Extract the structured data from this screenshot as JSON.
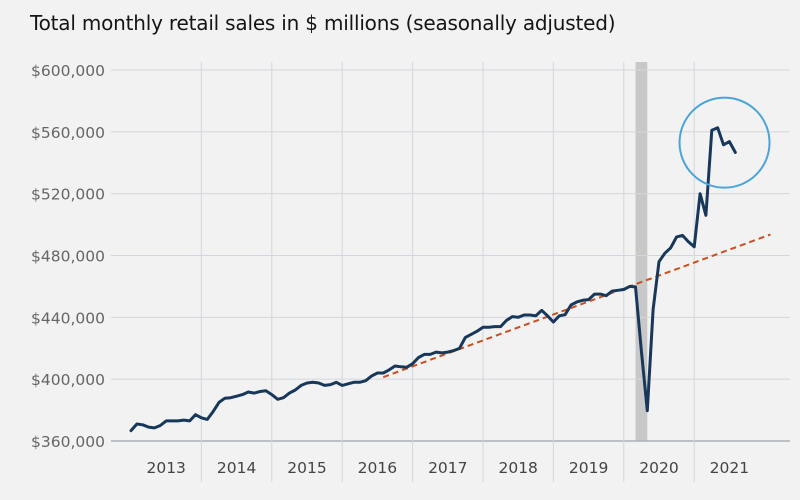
{
  "chart_data": {
    "type": "line",
    "title": "Total monthly retail sales in $ millions (seasonally adjusted)",
    "xlabel": "",
    "ylabel": "",
    "ylim": [
      360000,
      600000
    ],
    "yticks": [
      360000,
      400000,
      440000,
      480000,
      520000,
      560000,
      600000
    ],
    "ytick_labels": [
      "$360,000",
      "$400,000",
      "$440,000",
      "$480,000",
      "$520,000",
      "$560,000",
      "$600,000"
    ],
    "xticks": [
      "2013",
      "2014",
      "2015",
      "2016",
      "2017",
      "2018",
      "2019",
      "2020",
      "2021"
    ],
    "grid": true,
    "colors": {
      "series": "#17385a",
      "trend": "#c9501f",
      "recession": "#c8c8c8",
      "highlight": "#4aa3d9",
      "grid": "#d3d6dc",
      "axis": "#aab0ba"
    },
    "series": [
      {
        "start": "2012-12",
        "frequency": "monthly",
        "values": [
          366700,
          371000,
          370500,
          369000,
          368500,
          370000,
          373000,
          373000,
          373000,
          373500,
          373000,
          377000,
          375000,
          374000,
          379000,
          385000,
          387700,
          388000,
          389000,
          390000,
          391700,
          391000,
          392000,
          392500,
          390000,
          387000,
          388000,
          391000,
          393000,
          396000,
          397500,
          398000,
          397500,
          396000,
          396500,
          398000,
          396000,
          397000,
          398000,
          398000,
          399000,
          402000,
          404000,
          404000,
          406000,
          408500,
          408000,
          407700,
          410000,
          414000,
          416000,
          416000,
          417500,
          417000,
          417500,
          418500,
          420000,
          427000,
          429000,
          431000,
          433600,
          433600,
          434000,
          434000,
          438000,
          440500,
          440000,
          441500,
          441500,
          441000,
          444500,
          441000,
          437000,
          441000,
          441700,
          448000,
          450000,
          451000,
          451500,
          455000,
          455000,
          454000,
          457000,
          457500,
          458000,
          460000,
          459700,
          418000,
          379600,
          445000,
          476000,
          481500,
          485000,
          492000,
          493000,
          489000,
          485600,
          520000,
          506000,
          561000,
          562600,
          551600,
          553700,
          546700
        ]
      }
    ],
    "trend_line": {
      "start": "2016-07",
      "start_value": 401300,
      "end": "2022-01",
      "end_value": 493600,
      "style": "dashed"
    },
    "recession_band": {
      "start": "2020-02",
      "end": "2020-04"
    },
    "highlight_circle": {
      "center": "2021-05",
      "center_value": 553000
    }
  }
}
